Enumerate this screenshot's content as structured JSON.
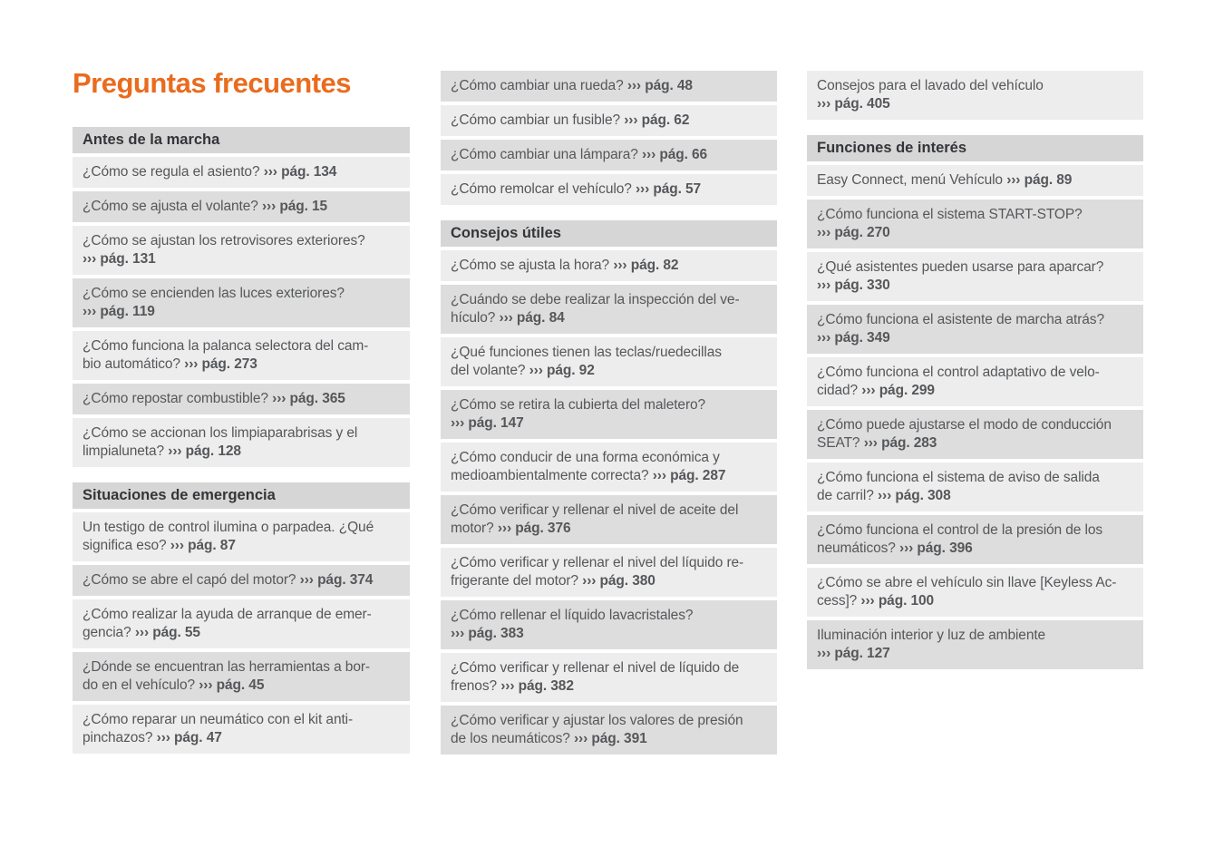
{
  "title": "Preguntas frecuentes",
  "colors": {
    "accent": "#e96c1e",
    "header-bg": "#d6d6d6",
    "row-dark": "#dddddd",
    "row-light": "#ededed",
    "header-text": "#333538",
    "item-text": "#55575a"
  },
  "columns": [
    {
      "blocks": [
        {
          "type": "header",
          "text": "Antes de la marcha"
        },
        {
          "type": "item",
          "tone": "light",
          "q": "¿Cómo se regula el asiento?",
          "ref": "››› pág. 134",
          "ref_newline": false
        },
        {
          "type": "item",
          "tone": "dark",
          "q": "¿Cómo se ajusta el volante?",
          "ref": "››› pág. 15",
          "ref_newline": false
        },
        {
          "type": "item",
          "tone": "light",
          "q": "¿Cómo se ajustan los retrovisores exteriores?",
          "ref": "››› pág. 131",
          "ref_newline": true
        },
        {
          "type": "item",
          "tone": "dark",
          "q": "¿Cómo se encienden las luces exteriores?",
          "ref": "››› pág. 119",
          "ref_newline": true
        },
        {
          "type": "item",
          "tone": "light",
          "q": "¿Cómo funciona la palanca selectora del cam-\nbio automático?",
          "ref": "››› pág. 273",
          "ref_newline": false
        },
        {
          "type": "item",
          "tone": "dark",
          "q": "¿Cómo repostar combustible?",
          "ref": "››› pág. 365",
          "ref_newline": false
        },
        {
          "type": "item",
          "tone": "light",
          "q": "¿Cómo se accionan los limpiaparabrisas y el\nlimpialuneta?",
          "ref": "››› pág. 128",
          "ref_newline": false
        },
        {
          "type": "header",
          "text": "Situaciones de emergencia"
        },
        {
          "type": "item",
          "tone": "light",
          "q": "Un testigo de control ilumina o parpadea. ¿Qué\nsignifica eso?",
          "ref": "››› pág. 87",
          "ref_newline": false
        },
        {
          "type": "item",
          "tone": "dark",
          "q": "¿Cómo se abre el capó del motor?",
          "ref": "››› pág. 374",
          "ref_newline": false
        },
        {
          "type": "item",
          "tone": "light",
          "q": "¿Cómo realizar la ayuda de arranque de emer-\ngencia?",
          "ref": "››› pág. 55",
          "ref_newline": false
        },
        {
          "type": "item",
          "tone": "dark",
          "q": "¿Dónde se encuentran las herramientas a bor-\ndo en el vehículo?",
          "ref": "››› pág. 45",
          "ref_newline": false
        },
        {
          "type": "item",
          "tone": "light",
          "q": "¿Cómo reparar un neumático con el kit anti-\npinchazos?",
          "ref": "››› pág. 47",
          "ref_newline": false
        }
      ]
    },
    {
      "blocks": [
        {
          "type": "item",
          "tone": "dark",
          "q": "¿Cómo cambiar una rueda?",
          "ref": "››› pág. 48",
          "ref_newline": false
        },
        {
          "type": "item",
          "tone": "light",
          "q": "¿Cómo cambiar un fusible?",
          "ref": "››› pág. 62",
          "ref_newline": false
        },
        {
          "type": "item",
          "tone": "dark",
          "q": "¿Cómo cambiar una lámpara?",
          "ref": "››› pág. 66",
          "ref_newline": false
        },
        {
          "type": "item",
          "tone": "light",
          "q": "¿Cómo remolcar el vehículo?",
          "ref": "››› pág. 57",
          "ref_newline": false
        },
        {
          "type": "header",
          "text": "Consejos útiles"
        },
        {
          "type": "item",
          "tone": "light",
          "q": "¿Cómo se ajusta la hora?",
          "ref": "››› pág. 82",
          "ref_newline": false
        },
        {
          "type": "item",
          "tone": "dark",
          "q": "¿Cuándo se debe realizar la inspección del ve-\nhículo?",
          "ref": "››› pág. 84",
          "ref_newline": false
        },
        {
          "type": "item",
          "tone": "light",
          "q": "¿Qué funciones tienen las teclas/ruedecillas\ndel volante?",
          "ref": "››› pág. 92",
          "ref_newline": false
        },
        {
          "type": "item",
          "tone": "dark",
          "q": "¿Cómo se retira la cubierta del maletero?",
          "ref": "››› pág. 147",
          "ref_newline": true
        },
        {
          "type": "item",
          "tone": "light",
          "q": "¿Cómo conducir de una forma económica y\nmedioambientalmente correcta?",
          "ref": "››› pág. 287",
          "ref_newline": false
        },
        {
          "type": "item",
          "tone": "dark",
          "q": "¿Cómo verificar y rellenar el nivel de aceite del\nmotor?",
          "ref": "››› pág. 376",
          "ref_newline": false
        },
        {
          "type": "item",
          "tone": "light",
          "q": "¿Cómo verificar y rellenar el nivel del líquido re-\nfrigerante del motor?",
          "ref": "››› pág. 380",
          "ref_newline": false
        },
        {
          "type": "item",
          "tone": "dark",
          "q": "¿Cómo rellenar el líquido lavacristales?",
          "ref": "››› pág. 383",
          "ref_newline": true
        },
        {
          "type": "item",
          "tone": "light",
          "q": "¿Cómo verificar y rellenar el nivel de líquido de\nfrenos?",
          "ref": "››› pág. 382",
          "ref_newline": false
        },
        {
          "type": "item",
          "tone": "dark",
          "q": "¿Cómo verificar y ajustar los valores de presión\nde los neumáticos?",
          "ref": "››› pág. 391",
          "ref_newline": false
        }
      ]
    },
    {
      "blocks": [
        {
          "type": "item",
          "tone": "light",
          "q": "Consejos para el lavado del vehículo",
          "ref": "››› pág. 405",
          "ref_newline": true
        },
        {
          "type": "header",
          "text": "Funciones de interés"
        },
        {
          "type": "item",
          "tone": "light",
          "q": "Easy Connect, menú Vehículo",
          "ref": "››› pág. 89",
          "ref_newline": false
        },
        {
          "type": "item",
          "tone": "dark",
          "q": "¿Cómo funciona el sistema START-STOP?",
          "ref": "››› pág. 270",
          "ref_newline": true
        },
        {
          "type": "item",
          "tone": "light",
          "q": "¿Qué asistentes pueden usarse para aparcar?",
          "ref": "››› pág. 330",
          "ref_newline": true
        },
        {
          "type": "item",
          "tone": "dark",
          "q": "¿Cómo funciona el asistente de marcha atrás?",
          "ref": "››› pág. 349",
          "ref_newline": true
        },
        {
          "type": "item",
          "tone": "light",
          "q": "¿Cómo funciona el control adaptativo de velo-\ncidad?",
          "ref": "››› pág. 299",
          "ref_newline": false
        },
        {
          "type": "item",
          "tone": "dark",
          "q": "¿Cómo puede ajustarse el modo de conducción\nSEAT?",
          "ref": "››› pág. 283",
          "ref_newline": false
        },
        {
          "type": "item",
          "tone": "light",
          "q": "¿Cómo funciona el sistema de aviso de salida\nde carril?",
          "ref": "››› pág. 308",
          "ref_newline": false
        },
        {
          "type": "item",
          "tone": "dark",
          "q": "¿Cómo funciona el control de la presión de los\nneumáticos?",
          "ref": "››› pág. 396",
          "ref_newline": false
        },
        {
          "type": "item",
          "tone": "light",
          "q": "¿Cómo se abre el vehículo sin llave [Keyless Ac-\ncess]?",
          "ref": "››› pág. 100",
          "ref_newline": false
        },
        {
          "type": "item",
          "tone": "dark",
          "q": "Iluminación interior y luz de ambiente",
          "ref": "››› pág. 127",
          "ref_newline": true
        }
      ]
    }
  ]
}
